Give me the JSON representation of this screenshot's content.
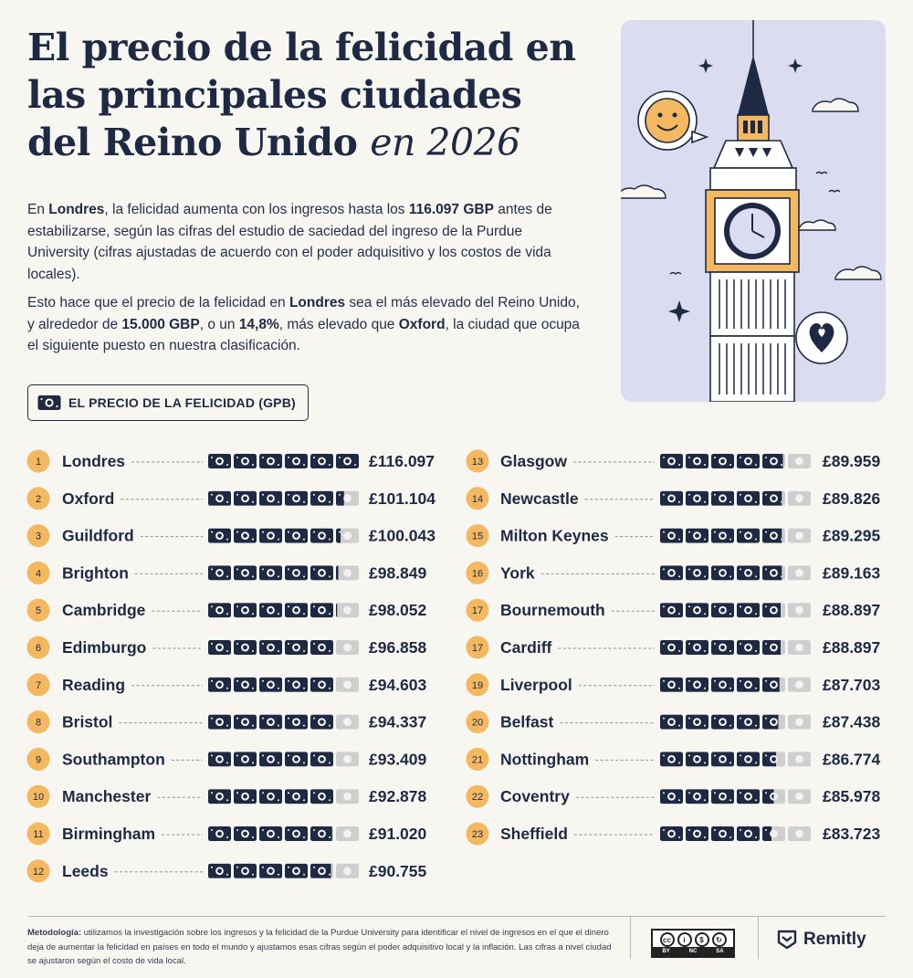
{
  "title": {
    "line1": "El precio de la felicidad en",
    "line2": "las principales ciudades",
    "line3_main": "del Reino Unido",
    "line3_italic": "en 2026"
  },
  "paragraph1": {
    "t1": "En ",
    "b1": "Londres",
    "t2": ", la felicidad aumenta con los ingresos hasta los ",
    "b2": "116.097 GBP",
    "t3": " antes de estabilizarse, según las cifras del estudio de saciedad del ingreso de la Purdue University (cifras ajustadas de acuerdo con el poder adquisitivo y los costos de vida locales)."
  },
  "paragraph2": {
    "t1": "Esto hace que el precio de la felicidad en ",
    "b1": "Londres",
    "t2": " sea el más elevado del Reino Unido, y alrededor de ",
    "b2": "15.000 GBP",
    "t3": ", o un ",
    "b3": "14,8%",
    "t4": ", más elevado que ",
    "b4": "Oxford",
    "t5": ", la ciudad que ocupa el siguiente puesto en nuestra clasificación."
  },
  "badge_label": "EL PRECIO DE LA FELICIDAD (GPB)",
  "chart_data": {
    "type": "table",
    "title": "EL PRECIO DE LA FELICIDAD (GPB)",
    "icon_unit": "banknote",
    "icons_per_row": 6,
    "columns": [
      [
        {
          "rank": "1",
          "city": "Londres",
          "value": 116097,
          "label": "£116.097",
          "fill": 6.0
        },
        {
          "rank": "2",
          "city": "Oxford",
          "value": 101104,
          "label": "£101.104",
          "fill": 5.35
        },
        {
          "rank": "3",
          "city": "Guildford",
          "value": 100043,
          "label": "£100.043",
          "fill": 5.2
        },
        {
          "rank": "4",
          "city": "Brighton",
          "value": 98849,
          "label": "£98.849",
          "fill": 5.1
        },
        {
          "rank": "5",
          "city": "Cambridge",
          "value": 98052,
          "label": "£98.052",
          "fill": 5.05
        },
        {
          "rank": "6",
          "city": "Edimburgo",
          "value": 96858,
          "label": "£96.858",
          "fill": 5.0
        },
        {
          "rank": "7",
          "city": "Reading",
          "value": 94603,
          "label": "£94.603",
          "fill": 5.0
        },
        {
          "rank": "8",
          "city": "Bristol",
          "value": 94337,
          "label": "£94.337",
          "fill": 5.0
        },
        {
          "rank": "9",
          "city": "Southampton",
          "value": 93409,
          "label": "£93.409",
          "fill": 5.0
        },
        {
          "rank": "10",
          "city": "Manchester",
          "value": 92878,
          "label": "£92.878",
          "fill": 5.0
        },
        {
          "rank": "11",
          "city": "Birmingham",
          "value": 91020,
          "label": "£91.020",
          "fill": 4.95
        },
        {
          "rank": "12",
          "city": "Leeds",
          "value": 90755,
          "label": "£90.755",
          "fill": 4.9
        }
      ],
      [
        {
          "rank": "13",
          "city": "Glasgow",
          "value": 89959,
          "label": "£89.959",
          "fill": 4.9
        },
        {
          "rank": "14",
          "city": "Newcastle",
          "value": 89826,
          "label": "£89.826",
          "fill": 4.85
        },
        {
          "rank": "15",
          "city": "Milton Keynes",
          "value": 89295,
          "label": "£89.295",
          "fill": 4.85
        },
        {
          "rank": "16",
          "city": "York",
          "value": 89163,
          "label": "£89.163",
          "fill": 4.85
        },
        {
          "rank": "17",
          "city": "Bournemouth",
          "value": 88897,
          "label": "£88.897",
          "fill": 4.8
        },
        {
          "rank": "17",
          "city": "Cardiff",
          "value": 88897,
          "label": "£88.897",
          "fill": 4.8
        },
        {
          "rank": "19",
          "city": "Liverpool",
          "value": 87703,
          "label": "£87.703",
          "fill": 4.75
        },
        {
          "rank": "20",
          "city": "Belfast",
          "value": 87438,
          "label": "£87.438",
          "fill": 4.7
        },
        {
          "rank": "21",
          "city": "Nottingham",
          "value": 86774,
          "label": "£86.774",
          "fill": 4.6
        },
        {
          "rank": "22",
          "city": "Coventry",
          "value": 85978,
          "label": "£85.978",
          "fill": 4.5
        },
        {
          "rank": "23",
          "city": "Sheffield",
          "value": 83723,
          "label": "£83.723",
          "fill": 4.4
        }
      ]
    ]
  },
  "footer": {
    "methodology_label": "Metodología:",
    "methodology_text": " utilizamos la investigación sobre los ingresos y la felicidad de la Purdue University para identificar el nivel de ingresos en el que el dinero deja de aumentar la felicidad en países en todo el mundo y ajustamos esas cifras según el poder adquisitivo local y la inflación. Las cifras a nivel ciudad se ajustaron según el costo de vida local.",
    "license": {
      "cc": "cc",
      "by": "BY",
      "nc": "NC",
      "sa": "SA"
    },
    "brand": "Remitly"
  },
  "colors": {
    "navy": "#1e2a44",
    "orange": "#f4b860",
    "gray_note": "#cfcfcf",
    "background": "#f8f6f0",
    "illustration_bg": "#dcdcf0"
  }
}
